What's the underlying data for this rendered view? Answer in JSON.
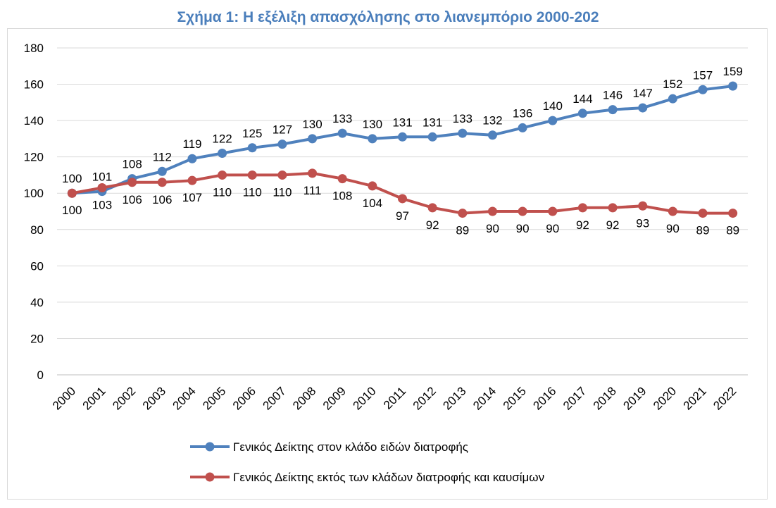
{
  "chart_data": {
    "type": "line",
    "title": "Σχήμα 1: Η εξέλιξη απασχόλησης στο λιανεμπόριο 2000-202",
    "xlabel": "",
    "ylabel": "",
    "ylim": [
      0,
      180
    ],
    "yticks": [
      0,
      20,
      40,
      60,
      80,
      100,
      120,
      140,
      160,
      180
    ],
    "grid": true,
    "legend_position": "bottom",
    "categories": [
      "2000",
      "2001",
      "2002",
      "2003",
      "2004",
      "2005",
      "2006",
      "2007",
      "2008",
      "2009",
      "2010",
      "2011",
      "2012",
      "2013",
      "2014",
      "2015",
      "2016",
      "2017",
      "2018",
      "2019",
      "2020",
      "2021",
      "2022"
    ],
    "series": [
      {
        "name": "Γενικός Δείκτης στον κλάδο ειδών διατροφής",
        "color": "#4f81bd",
        "label_position": "above",
        "values": [
          100,
          101,
          108,
          112,
          119,
          122,
          125,
          127,
          130,
          133,
          130,
          131,
          131,
          133,
          132,
          136,
          140,
          144,
          146,
          147,
          152,
          157,
          159
        ],
        "labels": [
          "100",
          "101",
          "108",
          "112",
          "119",
          "122",
          "125",
          "127",
          "130",
          "133",
          "130",
          "131",
          "131",
          "133",
          "132",
          "136",
          "140",
          "144",
          "146",
          "147",
          "152",
          "157",
          "159"
        ]
      },
      {
        "name": "Γενικός Δείκτης εκτός των κλάδων διατροφής και καυσίμων",
        "color": "#c0504d",
        "label_position": "below",
        "values": [
          100,
          103,
          106,
          106,
          107,
          110,
          110,
          110,
          111,
          108,
          104,
          97,
          92,
          89,
          90,
          90,
          90,
          92,
          92,
          93,
          90,
          89,
          89
        ],
        "labels": [
          "100",
          "103",
          "106",
          "106",
          "107",
          "110",
          "110",
          "110",
          "111",
          "108",
          "104",
          "97",
          "92",
          "89",
          "90",
          "90",
          "90",
          "92",
          "92",
          "93",
          "90",
          "89",
          "89"
        ]
      }
    ]
  }
}
